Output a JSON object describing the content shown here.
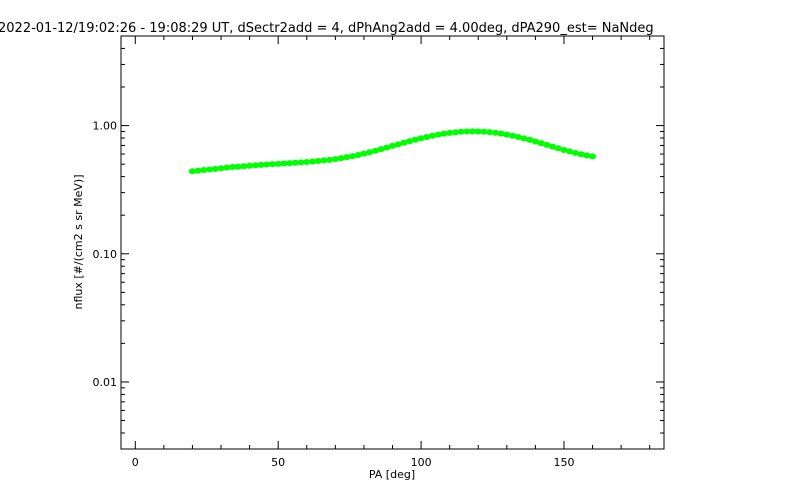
{
  "chart_data": {
    "type": "scatter",
    "title": "2022-01-12/19:02:26 - 19:08:29 UT, dSectr2add = 4, dPhAng2add = 4.00deg, dPA290_est=    NaNdeg",
    "xlabel": "PA [deg]",
    "ylabel": "nflux [#/(cm2 s sr MeV)]",
    "xlim": [
      -5,
      185
    ],
    "ylim": [
      0.003,
      5.0
    ],
    "yscale": "log",
    "xticks": [
      {
        "value": 0,
        "label": "0"
      },
      {
        "value": 50,
        "label": "50"
      },
      {
        "value": 100,
        "label": "100"
      },
      {
        "value": 150,
        "label": "150"
      }
    ],
    "yticks": [
      {
        "value": 0.01,
        "label": "0.01"
      },
      {
        "value": 0.1,
        "label": "0.10"
      },
      {
        "value": 1.0,
        "label": "1.00"
      }
    ],
    "grid": false,
    "marker_color": "#00ff00",
    "series": [
      {
        "x": [
          20,
          22,
          24,
          26,
          28,
          30,
          32,
          34,
          36,
          38,
          40,
          42,
          44,
          46,
          48,
          50,
          52,
          54,
          56,
          58,
          60,
          62,
          64,
          66,
          68,
          70,
          72,
          74,
          76,
          78,
          80,
          82,
          84,
          86,
          88,
          90,
          92,
          94,
          96,
          98,
          100,
          102,
          104,
          106,
          108,
          110,
          112,
          114,
          116,
          118,
          120,
          122,
          124,
          126,
          128,
          130,
          132,
          134,
          136,
          138,
          140,
          142,
          144,
          146,
          148,
          150,
          152,
          154,
          156,
          158,
          160
        ],
        "y": [
          0.44,
          0.445,
          0.45,
          0.455,
          0.46,
          0.465,
          0.47,
          0.475,
          0.478,
          0.482,
          0.486,
          0.49,
          0.494,
          0.497,
          0.5,
          0.503,
          0.506,
          0.51,
          0.513,
          0.516,
          0.52,
          0.525,
          0.53,
          0.535,
          0.54,
          0.548,
          0.557,
          0.567,
          0.578,
          0.59,
          0.605,
          0.62,
          0.637,
          0.655,
          0.674,
          0.694,
          0.714,
          0.735,
          0.756,
          0.776,
          0.796,
          0.815,
          0.833,
          0.85,
          0.865,
          0.878,
          0.888,
          0.895,
          0.9,
          0.902,
          0.9,
          0.896,
          0.889,
          0.879,
          0.866,
          0.851,
          0.834,
          0.815,
          0.795,
          0.774,
          0.752,
          0.73,
          0.708,
          0.686,
          0.665,
          0.645,
          0.628,
          0.612,
          0.598,
          0.586,
          0.575
        ]
      }
    ]
  }
}
